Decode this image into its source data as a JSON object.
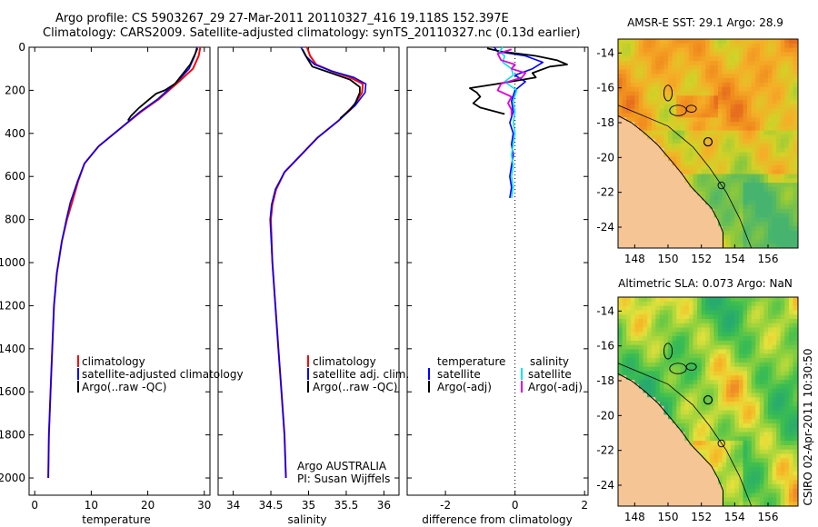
{
  "header": {
    "line1": "Argo profile: CS 5903267_29 27-Mar-2011 20110327_416 19.118S 152.397E",
    "line2": "Climatology: CARS2009. Satellite-adjusted climatology: synTS_20110327.nc (0.13d earlier)"
  },
  "side_label": "CSIRO 02-Apr-2011 10:30:50",
  "colors": {
    "climatology": "#ff0000",
    "satellite": "#0000ff",
    "argo": "#000000",
    "sal_satellite": "#00e5ee",
    "sal_argo": "#e000e0",
    "land": "#f5c595",
    "coast": "#000000"
  },
  "chart_data": [
    {
      "id": "temperature",
      "type": "line",
      "xlabel": "temperature",
      "ylabel": "",
      "xlim": [
        -1,
        31
      ],
      "ylim": [
        2080,
        0
      ],
      "x_ticks": [
        "0",
        "10",
        "20",
        "30"
      ],
      "y_ticks": [
        "0",
        "200",
        "400",
        "600",
        "800",
        "1000",
        "1200",
        "1400",
        "1600",
        "1800",
        "2000"
      ],
      "legend": [
        "climatology",
        "satellite-adjusted climatology",
        "Argo(..raw -QC)"
      ],
      "series": [
        {
          "name": "climatology",
          "points": [
            [
              29.3,
              0
            ],
            [
              29.0,
              40
            ],
            [
              28.0,
              100
            ],
            [
              25.5,
              160
            ],
            [
              22.0,
              240
            ],
            [
              18.8,
              300
            ],
            [
              15.0,
              380
            ],
            [
              11.3,
              460
            ],
            [
              8.8,
              540
            ],
            [
              7.7,
              620
            ],
            [
              6.6,
              720
            ],
            [
              5.7,
              800
            ],
            [
              4.8,
              900
            ],
            [
              3.9,
              1050
            ],
            [
              3.4,
              1200
            ],
            [
              3.1,
              1400
            ],
            [
              2.8,
              1600
            ],
            [
              2.5,
              1800
            ],
            [
              2.4,
              2000
            ]
          ]
        },
        {
          "name": "satellite-adjusted climatology",
          "points": [
            [
              28.7,
              0
            ],
            [
              28.3,
              40
            ],
            [
              27.3,
              100
            ],
            [
              25.2,
              160
            ],
            [
              21.8,
              240
            ],
            [
              18.6,
              300
            ],
            [
              15.0,
              380
            ],
            [
              11.3,
              460
            ],
            [
              8.8,
              540
            ],
            [
              7.6,
              620
            ],
            [
              6.3,
              720
            ],
            [
              5.6,
              800
            ],
            [
              4.8,
              900
            ],
            [
              3.9,
              1050
            ],
            [
              3.4,
              1200
            ],
            [
              3.1,
              1400
            ],
            [
              2.8,
              1600
            ],
            [
              2.5,
              1800
            ],
            [
              2.4,
              2000
            ]
          ]
        },
        {
          "name": "Argo(..raw -QC)",
          "points": [
            [
              28.8,
              5
            ],
            [
              28.4,
              30
            ],
            [
              27.5,
              80
            ],
            [
              26.0,
              130
            ],
            [
              24.8,
              170
            ],
            [
              23.0,
              200
            ],
            [
              21.5,
              215
            ],
            [
              20.8,
              230
            ],
            [
              18.5,
              280
            ],
            [
              17.0,
              320
            ],
            [
              16.5,
              340
            ]
          ]
        }
      ]
    },
    {
      "id": "salinity",
      "type": "line",
      "xlabel": "salinity",
      "ylabel": "",
      "xlim": [
        33.8,
        36.2
      ],
      "ylim": [
        2080,
        0
      ],
      "x_ticks": [
        "34",
        "34.5",
        "35",
        "35.5",
        "36"
      ],
      "y_ticks": [],
      "legend": [
        "climatology",
        "satellite adj. clim.",
        "Argo(..raw -QC)"
      ],
      "annotation": [
        "Argo AUSTRALIA",
        "PI: Susan Wijffels"
      ],
      "series": [
        {
          "name": "climatology",
          "points": [
            [
              34.98,
              0
            ],
            [
              35.02,
              40
            ],
            [
              35.1,
              80
            ],
            [
              35.3,
              110
            ],
            [
              35.55,
              140
            ],
            [
              35.72,
              170
            ],
            [
              35.71,
              210
            ],
            [
              35.6,
              270
            ],
            [
              35.4,
              340
            ],
            [
              35.12,
              420
            ],
            [
              34.9,
              500
            ],
            [
              34.68,
              580
            ],
            [
              34.57,
              660
            ],
            [
              34.52,
              730
            ],
            [
              34.5,
              800
            ],
            [
              34.52,
              1000
            ],
            [
              34.56,
              1200
            ],
            [
              34.6,
              1400
            ],
            [
              34.64,
              1600
            ],
            [
              34.68,
              1800
            ],
            [
              34.7,
              2000
            ]
          ]
        },
        {
          "name": "satellite adj. clim.",
          "points": [
            [
              34.9,
              0
            ],
            [
              34.96,
              40
            ],
            [
              35.08,
              80
            ],
            [
              35.3,
              110
            ],
            [
              35.6,
              140
            ],
            [
              35.76,
              170
            ],
            [
              35.75,
              210
            ],
            [
              35.62,
              270
            ],
            [
              35.4,
              340
            ],
            [
              35.12,
              420
            ],
            [
              34.9,
              500
            ],
            [
              34.68,
              580
            ],
            [
              34.56,
              660
            ],
            [
              34.51,
              730
            ],
            [
              34.49,
              800
            ],
            [
              34.52,
              1000
            ],
            [
              34.56,
              1200
            ],
            [
              34.6,
              1400
            ],
            [
              34.64,
              1600
            ],
            [
              34.68,
              1800
            ],
            [
              34.7,
              2000
            ]
          ]
        },
        {
          "name": "Argo(..raw -QC)",
          "points": [
            [
              34.92,
              10
            ],
            [
              34.98,
              50
            ],
            [
              35.05,
              90
            ],
            [
              35.3,
              120
            ],
            [
              35.55,
              150
            ],
            [
              35.68,
              185
            ],
            [
              35.68,
              210
            ],
            [
              35.62,
              260
            ],
            [
              35.55,
              290
            ],
            [
              35.42,
              330
            ]
          ]
        }
      ]
    },
    {
      "id": "difference",
      "type": "line",
      "xlabel": "difference from climatology",
      "ylabel": "",
      "xlim": [
        -3.1,
        2.1
      ],
      "ylim": [
        2080,
        0
      ],
      "x_ticks": [
        "-2",
        "0",
        "2"
      ],
      "y_ticks": [],
      "zero_line": 0,
      "legend_headers": [
        "temperature",
        "salinity"
      ],
      "legend": [
        [
          "satellite",
          "Argo(-adj)"
        ],
        [
          "satellite",
          "Argo(-adj)"
        ]
      ],
      "series": [
        {
          "name": "temperature satellite",
          "points": [
            [
              -0.6,
              0
            ],
            [
              -0.5,
              20
            ],
            [
              0.3,
              40
            ],
            [
              0.8,
              70
            ],
            [
              0.5,
              100
            ],
            [
              0.0,
              130
            ],
            [
              0.3,
              160
            ],
            [
              0.0,
              200
            ],
            [
              -0.1,
              250
            ],
            [
              -0.05,
              300
            ],
            [
              -0.15,
              350
            ],
            [
              -0.05,
              400
            ],
            [
              -0.1,
              450
            ],
            [
              -0.05,
              500
            ],
            [
              -0.1,
              550
            ],
            [
              -0.15,
              600
            ],
            [
              -0.1,
              650
            ],
            [
              -0.15,
              700
            ]
          ]
        },
        {
          "name": "temperature Argo(-adj)",
          "points": [
            [
              -0.8,
              5
            ],
            [
              -0.4,
              20
            ],
            [
              0.6,
              40
            ],
            [
              1.2,
              60
            ],
            [
              1.5,
              80
            ],
            [
              1.0,
              90
            ],
            [
              0.5,
              120
            ],
            [
              0.6,
              140
            ],
            [
              -0.5,
              170
            ],
            [
              -1.3,
              190
            ],
            [
              -1.1,
              210
            ],
            [
              -1.0,
              230
            ],
            [
              -1.2,
              260
            ],
            [
              -1.0,
              280
            ],
            [
              -0.3,
              310
            ]
          ]
        },
        {
          "name": "salinity satellite",
          "points": [
            [
              -0.35,
              0
            ],
            [
              -0.45,
              20
            ],
            [
              -0.3,
              40
            ],
            [
              -0.35,
              70
            ],
            [
              -0.1,
              100
            ],
            [
              -0.05,
              130
            ],
            [
              -0.3,
              160
            ],
            [
              0.05,
              200
            ],
            [
              -0.05,
              250
            ],
            [
              0.0,
              300
            ],
            [
              -0.05,
              350
            ],
            [
              0.0,
              400
            ],
            [
              -0.05,
              450
            ],
            [
              -0.1,
              500
            ],
            [
              -0.05,
              550
            ],
            [
              -0.1,
              600
            ],
            [
              -0.05,
              650
            ],
            [
              -0.1,
              700
            ]
          ]
        },
        {
          "name": "salinity Argo(-adj)",
          "points": [
            [
              -0.1,
              10
            ],
            [
              -0.5,
              30
            ],
            [
              -0.4,
              60
            ],
            [
              0.0,
              80
            ],
            [
              -0.1,
              100
            ],
            [
              0.3,
              120
            ],
            [
              0.2,
              140
            ],
            [
              -0.4,
              170
            ],
            [
              -0.5,
              200
            ],
            [
              -0.1,
              230
            ],
            [
              -0.2,
              260
            ],
            [
              -0.1,
              290
            ],
            [
              -0.1,
              320
            ]
          ]
        }
      ]
    },
    {
      "id": "sst_map",
      "type": "heatmap",
      "title": "AMSR-E SST: 29.1 Argo: 28.9",
      "xlim": [
        147,
        157.8
      ],
      "ylim": [
        -25.2,
        -13.2
      ],
      "x_ticks": [
        "148",
        "150",
        "152",
        "154",
        "156"
      ],
      "y_ticks": [
        "-14",
        "-16",
        "-18",
        "-20",
        "-22",
        "-24"
      ],
      "argo_position": [
        152.4,
        -19.1
      ]
    },
    {
      "id": "sla_map",
      "type": "heatmap",
      "title": "Altimetric SLA: 0.073 Argo: NaN",
      "xlim": [
        147,
        157.8
      ],
      "ylim": [
        -25.2,
        -13.2
      ],
      "x_ticks": [
        "148",
        "150",
        "152",
        "154",
        "156"
      ],
      "y_ticks": [
        "-14",
        "-16",
        "-18",
        "-20",
        "-22",
        "-24"
      ],
      "argo_position": [
        152.4,
        -19.1
      ]
    }
  ]
}
